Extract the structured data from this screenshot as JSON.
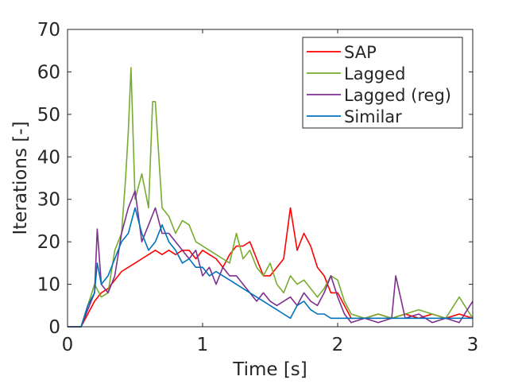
{
  "chart_data": {
    "type": "line",
    "title": "",
    "xlabel": "Time [s]",
    "ylabel": "Iterations [-]",
    "xlim": [
      0,
      3
    ],
    "ylim": [
      0,
      70
    ],
    "xticks": [
      "0",
      "1",
      "2",
      "3"
    ],
    "yticks": [
      "0",
      "10",
      "20",
      "30",
      "40",
      "50",
      "60",
      "70"
    ],
    "grid": false,
    "legend_position": "top-right",
    "series": [
      {
        "name": "SAP",
        "color": "#ff0000",
        "x": [
          0,
          0.1,
          0.15,
          0.2,
          0.25,
          0.3,
          0.35,
          0.4,
          0.45,
          0.5,
          0.55,
          0.6,
          0.65,
          0.7,
          0.75,
          0.8,
          0.85,
          0.9,
          0.95,
          1.0,
          1.05,
          1.1,
          1.15,
          1.2,
          1.25,
          1.3,
          1.35,
          1.4,
          1.45,
          1.5,
          1.55,
          1.6,
          1.65,
          1.7,
          1.75,
          1.8,
          1.85,
          1.9,
          1.95,
          2.0,
          2.05,
          2.1,
          2.2,
          2.3,
          2.4,
          2.5,
          2.6,
          2.7,
          2.8,
          2.9,
          3.0
        ],
        "y": [
          0,
          0,
          3,
          6,
          8,
          9,
          11,
          13,
          14,
          15,
          16,
          17,
          18,
          17,
          18,
          17,
          18,
          18,
          16,
          18,
          17,
          16,
          14,
          17,
          19,
          19,
          20,
          16,
          12,
          12,
          14,
          16,
          28,
          18,
          22,
          19,
          14,
          12,
          8,
          8,
          5,
          2,
          2,
          3,
          2,
          3,
          2,
          3,
          2,
          3,
          2
        ]
      },
      {
        "name": "Lagged",
        "color": "#77ac30",
        "x": [
          0,
          0.1,
          0.15,
          0.2,
          0.25,
          0.3,
          0.35,
          0.4,
          0.43,
          0.45,
          0.47,
          0.5,
          0.55,
          0.6,
          0.63,
          0.65,
          0.7,
          0.75,
          0.8,
          0.85,
          0.9,
          0.95,
          1.0,
          1.05,
          1.1,
          1.15,
          1.2,
          1.25,
          1.3,
          1.35,
          1.4,
          1.45,
          1.5,
          1.55,
          1.6,
          1.65,
          1.7,
          1.75,
          1.8,
          1.85,
          1.9,
          1.95,
          2.0,
          2.05,
          2.1,
          2.2,
          2.3,
          2.4,
          2.5,
          2.6,
          2.7,
          2.8,
          2.9,
          3.0
        ],
        "y": [
          0,
          0,
          5,
          10,
          7,
          8,
          18,
          22,
          35,
          46,
          61,
          30,
          36,
          28,
          53,
          53,
          28,
          26,
          22,
          25,
          24,
          20,
          19,
          18,
          17,
          16,
          15,
          22,
          16,
          18,
          14,
          12,
          15,
          10,
          8,
          12,
          10,
          11,
          9,
          7,
          9,
          12,
          11,
          6,
          3,
          2,
          3,
          2,
          3,
          4,
          3,
          2,
          7,
          2
        ]
      },
      {
        "name": "Lagged (reg)",
        "color": "#7e2f8e",
        "x": [
          0,
          0.1,
          0.15,
          0.2,
          0.22,
          0.25,
          0.3,
          0.35,
          0.4,
          0.45,
          0.5,
          0.55,
          0.6,
          0.65,
          0.7,
          0.75,
          0.8,
          0.85,
          0.9,
          0.95,
          1.0,
          1.05,
          1.1,
          1.15,
          1.2,
          1.25,
          1.3,
          1.35,
          1.4,
          1.45,
          1.5,
          1.55,
          1.6,
          1.65,
          1.7,
          1.75,
          1.8,
          1.85,
          1.9,
          1.95,
          2.0,
          2.05,
          2.1,
          2.2,
          2.3,
          2.4,
          2.43,
          2.5,
          2.6,
          2.7,
          2.8,
          2.9,
          3.0
        ],
        "y": [
          0,
          0,
          4,
          8,
          23,
          10,
          8,
          12,
          22,
          28,
          32,
          20,
          24,
          28,
          22,
          22,
          20,
          18,
          16,
          18,
          12,
          14,
          10,
          14,
          12,
          12,
          10,
          8,
          6,
          8,
          6,
          5,
          6,
          7,
          5,
          8,
          6,
          5,
          8,
          12,
          7,
          3,
          1,
          2,
          1,
          2,
          12,
          2,
          3,
          1,
          2,
          1,
          6
        ]
      },
      {
        "name": "Similar",
        "color": "#0072bd",
        "x": [
          0,
          0.1,
          0.15,
          0.2,
          0.22,
          0.25,
          0.3,
          0.35,
          0.4,
          0.45,
          0.5,
          0.55,
          0.6,
          0.65,
          0.7,
          0.75,
          0.8,
          0.85,
          0.9,
          0.95,
          1.0,
          1.05,
          1.1,
          1.15,
          1.2,
          1.25,
          1.3,
          1.35,
          1.4,
          1.45,
          1.5,
          1.55,
          1.6,
          1.65,
          1.7,
          1.75,
          1.8,
          1.85,
          1.9,
          1.95,
          2.0,
          2.05,
          2.1,
          2.2,
          2.3,
          2.4,
          2.5,
          2.6,
          2.7,
          2.8,
          2.9,
          3.0
        ],
        "y": [
          0,
          0,
          5,
          8,
          15,
          10,
          12,
          16,
          20,
          22,
          28,
          22,
          18,
          20,
          24,
          20,
          18,
          15,
          16,
          14,
          14,
          12,
          13,
          12,
          11,
          10,
          9,
          8,
          7,
          6,
          5,
          4,
          3,
          2,
          5,
          6,
          4,
          3,
          3,
          2,
          2,
          2,
          2,
          2,
          2,
          2,
          2,
          2,
          2,
          2,
          2,
          2
        ]
      }
    ]
  }
}
